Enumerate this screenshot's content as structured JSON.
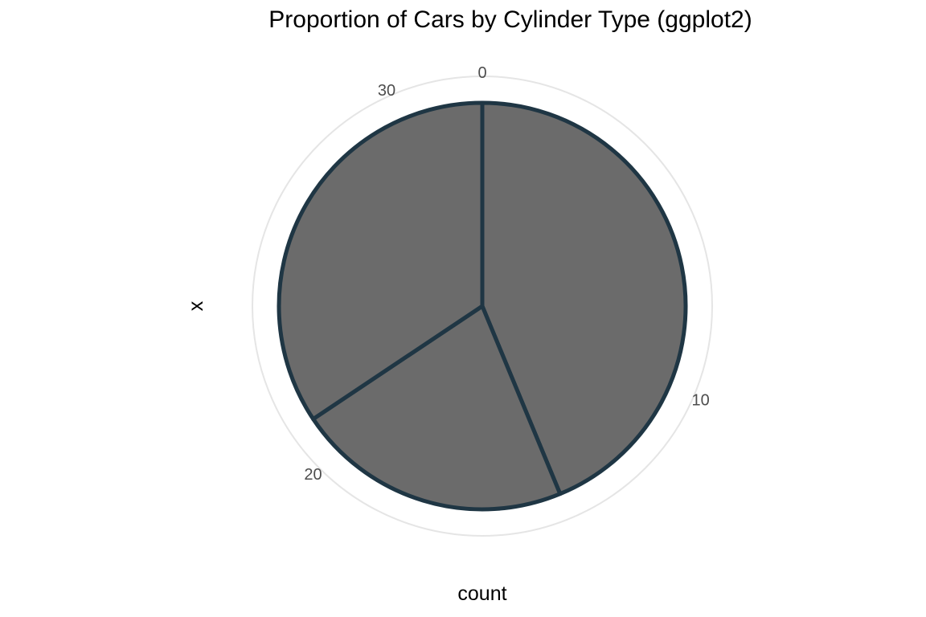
{
  "chart_data": {
    "type": "pie",
    "title": "Proportion of Cars by Cylinder Type (ggplot2)",
    "xlabel": "count",
    "ylabel": "x",
    "total": 32,
    "radial_ticks": [
      0,
      10,
      20,
      30
    ],
    "tick_labels": [
      "0",
      "10",
      "20",
      "30"
    ],
    "slices": [
      {
        "value": 14
      },
      {
        "value": 7
      },
      {
        "value": 11
      }
    ],
    "fill_color": "#6b6b6b",
    "stroke_color": "#1f3644",
    "grid_color": "#e5e5e5",
    "grid": true,
    "legend": "none"
  }
}
